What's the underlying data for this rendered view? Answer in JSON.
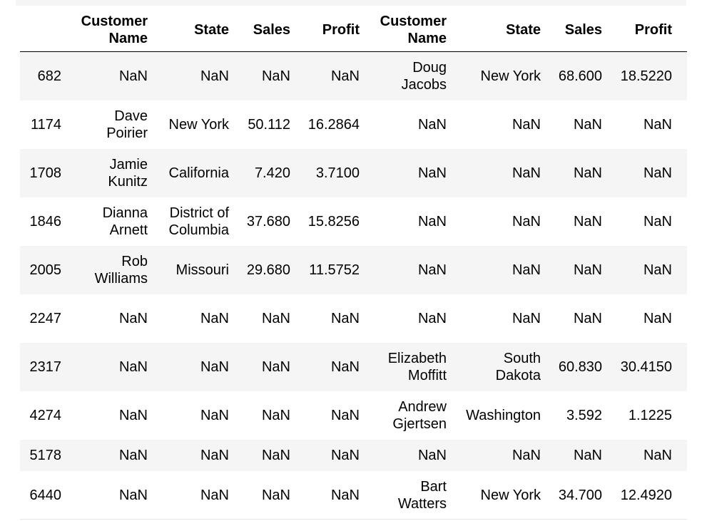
{
  "table": {
    "columns": [
      "",
      "Customer Name",
      "State",
      "Sales",
      "Profit",
      "Customer Name",
      "State",
      "Sales",
      "Profit"
    ],
    "rows": [
      {
        "index": "682",
        "cells": [
          "NaN",
          "NaN",
          "NaN",
          "NaN",
          "Doug Jacobs",
          "New York",
          "68.600",
          "18.5220"
        ]
      },
      {
        "index": "1174",
        "cells": [
          "Dave Poirier",
          "New York",
          "50.112",
          "16.2864",
          "NaN",
          "NaN",
          "NaN",
          "NaN"
        ]
      },
      {
        "index": "1708",
        "cells": [
          "Jamie Kunitz",
          "California",
          "7.420",
          "3.7100",
          "NaN",
          "NaN",
          "NaN",
          "NaN"
        ]
      },
      {
        "index": "1846",
        "cells": [
          "Dianna Arnett",
          "District of Columbia",
          "37.680",
          "15.8256",
          "NaN",
          "NaN",
          "NaN",
          "NaN"
        ]
      },
      {
        "index": "2005",
        "cells": [
          "Rob Williams",
          "Missouri",
          "29.680",
          "11.5752",
          "NaN",
          "NaN",
          "NaN",
          "NaN"
        ]
      },
      {
        "index": "2247",
        "cells": [
          "NaN",
          "NaN",
          "NaN",
          "NaN",
          "NaN",
          "NaN",
          "NaN",
          "NaN"
        ]
      },
      {
        "index": "2317",
        "cells": [
          "NaN",
          "NaN",
          "NaN",
          "NaN",
          "Elizabeth Moffitt",
          "South Dakota",
          "60.830",
          "30.4150"
        ]
      },
      {
        "index": "4274",
        "cells": [
          "NaN",
          "NaN",
          "NaN",
          "NaN",
          "Andrew Gjertsen",
          "Washington",
          "3.592",
          "1.1225"
        ]
      },
      {
        "index": "5178",
        "cells": [
          "NaN",
          "NaN",
          "NaN",
          "NaN",
          "NaN",
          "NaN",
          "NaN",
          "NaN"
        ]
      },
      {
        "index": "6440",
        "cells": [
          "NaN",
          "NaN",
          "NaN",
          "NaN",
          "Bart Watters",
          "New York",
          "34.700",
          "12.4920"
        ]
      }
    ]
  },
  "colors": {
    "row_stripe": "#f5f5f5",
    "header_rule": "#000000",
    "text": "#000000"
  }
}
